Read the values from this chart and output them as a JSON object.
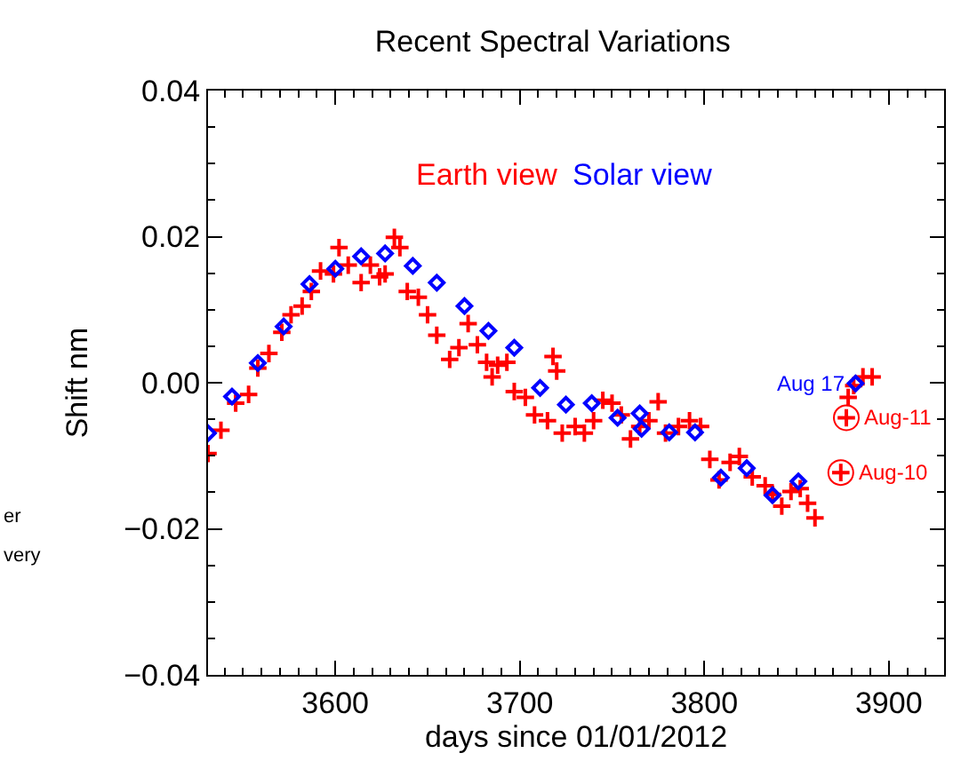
{
  "chart_data": {
    "type": "scatter",
    "title": "Recent Spectral Variations",
    "xlabel": "days since 01/01/2012",
    "ylabel": "Shift nm",
    "xlim": [
      3531,
      3930
    ],
    "xticks": [
      3600,
      3700,
      3800,
      3900
    ],
    "ylim": [
      -0.04,
      0.04
    ],
    "yticks": [
      {
        "value": -0.04,
        "label": "−0.04"
      },
      {
        "value": -0.02,
        "label": "−0.02"
      },
      {
        "value": 0.0,
        "label": "0.00"
      },
      {
        "value": 0.02,
        "label": "0.02"
      },
      {
        "value": 0.04,
        "label": "0.04"
      }
    ],
    "legend": false,
    "series": [
      {
        "name": "Earth view",
        "color": "#ff0000",
        "marker": "cross",
        "x": [
          3531,
          3538,
          3546,
          3553,
          3558,
          3564,
          3571,
          3576,
          3582,
          3587,
          3592,
          3599,
          3602,
          3607,
          3614,
          3619,
          3624,
          3627,
          3632,
          3635,
          3639,
          3645,
          3650,
          3655,
          3662,
          3667,
          3672,
          3677,
          3682,
          3685,
          3688,
          3693,
          3697,
          3703,
          3708,
          3715,
          3718,
          3720,
          3723,
          3730,
          3735,
          3740,
          3745,
          3750,
          3755,
          3760,
          3765,
          3770,
          3775,
          3779,
          3786,
          3792,
          3798,
          3803,
          3808,
          3814,
          3819,
          3826,
          3833,
          3837,
          3842,
          3847,
          3852,
          3856,
          3860,
          3874,
          3877,
          3878,
          3881,
          3886,
          3891
        ],
        "values": [
          -0.0097,
          -0.0065,
          -0.0028,
          -0.0016,
          0.002,
          0.004,
          0.0069,
          0.0093,
          0.0105,
          0.0125,
          0.0153,
          0.0149,
          0.0185,
          0.0161,
          0.0137,
          0.0161,
          0.0145,
          0.0149,
          0.0199,
          0.0185,
          0.0125,
          0.0117,
          0.0093,
          0.0065,
          0.0032,
          0.0048,
          0.0081,
          0.0052,
          0.0028,
          0.0008,
          0.0024,
          0.0028,
          -0.0012,
          -0.002,
          -0.0044,
          -0.0052,
          0.0036,
          0.0016,
          -0.0069,
          -0.006,
          -0.0069,
          -0.0052,
          -0.0024,
          -0.0028,
          -0.0044,
          -0.0077,
          -0.006,
          -0.0052,
          -0.0026,
          -0.0069,
          -0.006,
          -0.0052,
          -0.006,
          -0.0105,
          -0.0133,
          -0.0109,
          -0.0101,
          -0.0129,
          -0.0141,
          -0.0153,
          -0.0169,
          -0.0149,
          -0.0145,
          -0.0165,
          -0.0185,
          -0.0123,
          -0.0048,
          -0.002,
          -0.0004,
          0.0008,
          0.0008
        ]
      },
      {
        "name": "Solar view",
        "color": "#0000ff",
        "marker": "diamond",
        "x": [
          3531,
          3544,
          3558,
          3572,
          3586,
          3600,
          3614,
          3627,
          3642,
          3655,
          3670,
          3683,
          3697,
          3711,
          3725,
          3739,
          3753,
          3765,
          3766,
          3781,
          3795,
          3809,
          3823,
          3837,
          3851,
          3882
        ],
        "values": [
          -0.0069,
          -0.0019,
          0.0027,
          0.0077,
          0.0135,
          0.0156,
          0.0173,
          0.0177,
          0.016,
          0.0137,
          0.0105,
          0.0071,
          0.0048,
          -0.0007,
          -0.003,
          -0.0028,
          -0.0048,
          -0.0042,
          -0.0063,
          -0.0068,
          -0.0068,
          -0.013,
          -0.0117,
          -0.0154,
          -0.0135,
          -0.0001
        ]
      },
      {
        "color": "#ff0000",
        "marker": "circle",
        "x": [
          3874,
          3877
        ],
        "values": [
          -0.0123,
          -0.0048
        ]
      }
    ],
    "annotations": [
      {
        "text": "Aug 17",
        "x": 3882,
        "y": -0.0001
      },
      {
        "text": "Aug-11",
        "x": 3877,
        "y": -0.0048
      },
      {
        "text": "Aug-10",
        "x": 3874,
        "y": -0.0123
      },
      "er",
      "very"
    ]
  }
}
